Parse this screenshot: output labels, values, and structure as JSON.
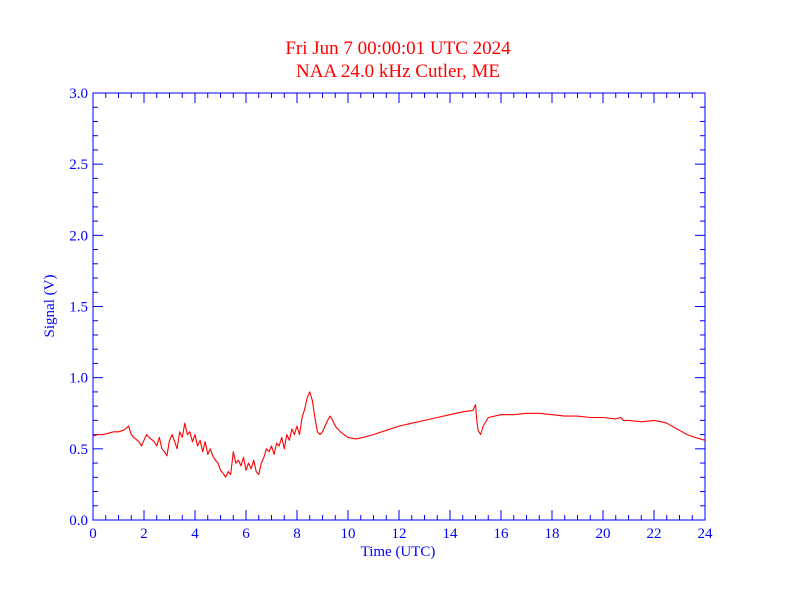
{
  "chart_data": {
    "type": "line",
    "title": "Fri Jun 7 00:00:01 UTC 2024",
    "subtitle": "NAA 24.0 kHz Cutler, ME",
    "xlabel": "Time (UTC)",
    "ylabel": "Signal (V)",
    "xlim": [
      0,
      24
    ],
    "ylim": [
      0.0,
      3.0
    ],
    "xticks": [
      "0",
      "2",
      "4",
      "6",
      "8",
      "10",
      "12",
      "14",
      "16",
      "18",
      "20",
      "22",
      "24"
    ],
    "yticks": [
      "0.0",
      "0.5",
      "1.0",
      "1.5",
      "2.0",
      "2.5",
      "3.0"
    ],
    "grid": false,
    "colors": {
      "title": "#ff0000",
      "axes": "#0000ff",
      "series": "#ff0000"
    },
    "series": [
      {
        "x": [
          0.0,
          0.2,
          0.4,
          0.6,
          0.8,
          1.0,
          1.2,
          1.4,
          1.5,
          1.6,
          1.8,
          1.9,
          2.0,
          2.1,
          2.2,
          2.4,
          2.5,
          2.6,
          2.7,
          2.8,
          2.9,
          3.0,
          3.1,
          3.2,
          3.3,
          3.4,
          3.5,
          3.6,
          3.7,
          3.8,
          3.9,
          4.0,
          4.1,
          4.2,
          4.3,
          4.4,
          4.5,
          4.6,
          4.7,
          4.8,
          4.9,
          5.0,
          5.1,
          5.2,
          5.3,
          5.4,
          5.5,
          5.6,
          5.7,
          5.8,
          5.9,
          6.0,
          6.1,
          6.2,
          6.3,
          6.4,
          6.5,
          6.6,
          6.7,
          6.8,
          6.9,
          7.0,
          7.1,
          7.2,
          7.3,
          7.4,
          7.5,
          7.6,
          7.7,
          7.8,
          7.9,
          8.0,
          8.1,
          8.2,
          8.3,
          8.4,
          8.5,
          8.6,
          8.7,
          8.8,
          8.9,
          9.0,
          9.1,
          9.2,
          9.3,
          9.4,
          9.5,
          9.7,
          10.0,
          10.3,
          10.6,
          11.0,
          11.5,
          12.0,
          12.5,
          13.0,
          13.5,
          14.0,
          14.5,
          14.9,
          15.0,
          15.05,
          15.1,
          15.2,
          15.3,
          15.5,
          16.0,
          16.5,
          17.0,
          17.5,
          18.0,
          18.5,
          19.0,
          19.5,
          20.0,
          20.5,
          20.7,
          20.8,
          21.0,
          21.5,
          22.0,
          22.3,
          22.5,
          22.8,
          23.0,
          23.3,
          23.6,
          24.0
        ],
        "values": [
          0.59,
          0.6,
          0.6,
          0.61,
          0.62,
          0.62,
          0.63,
          0.66,
          0.6,
          0.58,
          0.55,
          0.52,
          0.56,
          0.6,
          0.58,
          0.55,
          0.52,
          0.58,
          0.5,
          0.48,
          0.45,
          0.56,
          0.6,
          0.55,
          0.5,
          0.62,
          0.58,
          0.68,
          0.6,
          0.62,
          0.55,
          0.6,
          0.52,
          0.56,
          0.48,
          0.55,
          0.46,
          0.5,
          0.45,
          0.42,
          0.4,
          0.35,
          0.33,
          0.3,
          0.34,
          0.32,
          0.48,
          0.4,
          0.42,
          0.38,
          0.44,
          0.35,
          0.4,
          0.36,
          0.42,
          0.34,
          0.32,
          0.4,
          0.44,
          0.5,
          0.48,
          0.52,
          0.46,
          0.54,
          0.52,
          0.58,
          0.5,
          0.6,
          0.56,
          0.64,
          0.6,
          0.66,
          0.6,
          0.72,
          0.78,
          0.86,
          0.9,
          0.84,
          0.72,
          0.62,
          0.6,
          0.62,
          0.66,
          0.7,
          0.73,
          0.7,
          0.66,
          0.62,
          0.58,
          0.57,
          0.58,
          0.6,
          0.63,
          0.66,
          0.68,
          0.7,
          0.72,
          0.74,
          0.76,
          0.77,
          0.81,
          0.7,
          0.63,
          0.6,
          0.66,
          0.72,
          0.74,
          0.74,
          0.75,
          0.75,
          0.74,
          0.73,
          0.73,
          0.72,
          0.72,
          0.71,
          0.72,
          0.7,
          0.7,
          0.69,
          0.7,
          0.69,
          0.68,
          0.65,
          0.63,
          0.6,
          0.58,
          0.56
        ]
      }
    ]
  }
}
